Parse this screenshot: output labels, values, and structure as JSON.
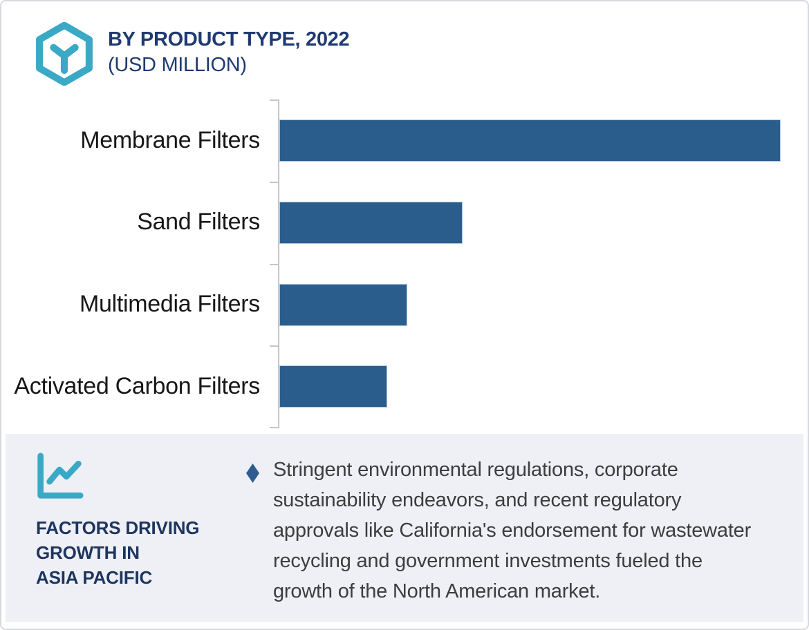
{
  "card": {
    "header": {
      "title": "BY PRODUCT TYPE, 2022",
      "subtitle": "(USD MILLION)",
      "icon": "hexagon-box-icon"
    },
    "footer": {
      "icon": "line-chart-icon",
      "heading_lines": [
        "FACTORS DRIVING",
        "GROWTH IN",
        "ASIA PACIFIC"
      ],
      "bullet_icon": "diamond-bullet-icon",
      "bullet_text": "Stringent environmental regulations, corporate sustainability endeavors, and recent regulatory approvals like California's endorsement for wastewater recycling and government investments fueled the growth of the North American market."
    },
    "colors": {
      "bar": "#2b5d8c",
      "bar_border": "#a9c7e3",
      "accent_teal": "#3aa9c6",
      "title_navy": "#1f3a72",
      "heading_navy": "#1e355f",
      "panel_background": "#eef0f5",
      "axis_gray": "#c5c5c9",
      "body_text": "#3d3d3d",
      "diamond": "#2e5c8e"
    }
  },
  "chart_data": {
    "type": "bar",
    "orientation": "horizontal",
    "title": "BY PRODUCT TYPE, 2022",
    "subtitle": "(USD MILLION)",
    "categories": [
      "Membrane Filters",
      "Sand Filters",
      "Multimedia Filters",
      "Activated Carbon Filters"
    ],
    "values": [
      100,
      36.6,
      25.5,
      21.5
    ],
    "values_unit": "percent of largest bar (numeric axis not labeled in image)",
    "xlabel": "",
    "ylabel": "",
    "axis_numeric_labels_visible": false,
    "grid": false,
    "legend": false,
    "bar_color": "#2b5d8c"
  }
}
